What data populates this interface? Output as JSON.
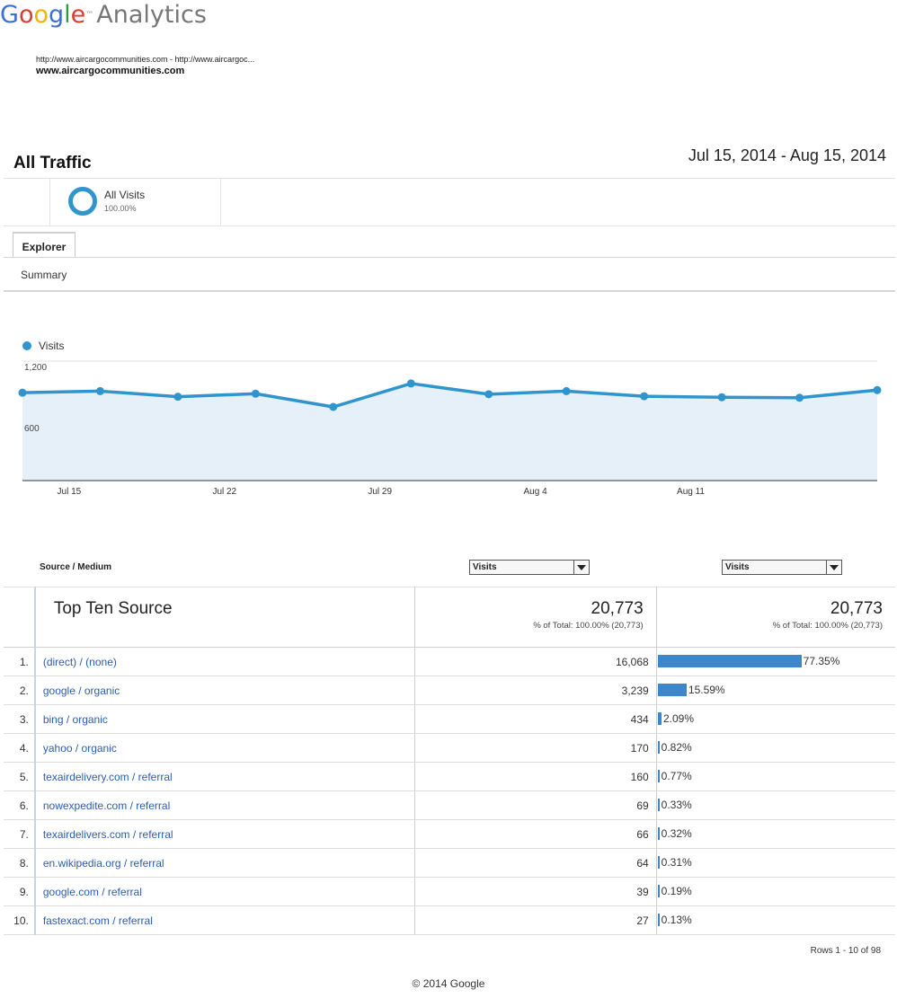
{
  "app": {
    "logo_google": "Google",
    "logo_tm": "™",
    "logo_analytics": "Analytics"
  },
  "profile": {
    "urls": "http://www.aircargocommunities.com - http://www.aircargoc...",
    "name": "www.aircargocommunities.com"
  },
  "report": {
    "title": "All Traffic",
    "date_range": "Jul 15, 2014 - Aug 15, 2014"
  },
  "segment": {
    "label": "All Visits",
    "pct": "100.00%",
    "color": "#3094cd"
  },
  "tabs": {
    "explorer": "Explorer",
    "summary": "Summary"
  },
  "chart_data": {
    "type": "area",
    "legend": "Visits",
    "legend_position": "top-left",
    "color": "#3094cd",
    "y_ticks": [
      "1,200",
      "600"
    ],
    "y_tick_values": [
      1200,
      600
    ],
    "ylim": [
      0,
      1200
    ],
    "x_ticks": [
      "Jul 15",
      "Jul 22",
      "Jul 29",
      "Aug 4",
      "Aug 11"
    ],
    "x_tick_index": [
      0.6,
      2.6,
      4.6,
      6.6,
      8.6
    ],
    "points": [
      890,
      905,
      850,
      880,
      750,
      980,
      875,
      905,
      855,
      845,
      840,
      915
    ],
    "grid": true
  },
  "table": {
    "dimension_header": "Source / Medium",
    "metric_select_1": "Visits",
    "metric_select_2": "Visits",
    "top_title": "Top Ten Source",
    "total_1": "20,773",
    "total_1_sub": "% of Total: 100.00% (20,773)",
    "total_2": "20,773",
    "total_2_sub": "% of Total: 100.00% (20,773)",
    "bar_color": "#3d86c9",
    "rows": [
      {
        "idx": "1.",
        "source": "(direct) / (none)",
        "visits": "16,068",
        "pct": "77.35%",
        "pct_value": 77.35
      },
      {
        "idx": "2.",
        "source": "google / organic",
        "visits": "3,239",
        "pct": "15.59%",
        "pct_value": 15.59
      },
      {
        "idx": "3.",
        "source": "bing / organic",
        "visits": "434",
        "pct": "2.09%",
        "pct_value": 2.09
      },
      {
        "idx": "4.",
        "source": "yahoo / organic",
        "visits": "170",
        "pct": "0.82%",
        "pct_value": 0.82
      },
      {
        "idx": "5.",
        "source": "texairdelivery.com / referral",
        "visits": "160",
        "pct": "0.77%",
        "pct_value": 0.77
      },
      {
        "idx": "6.",
        "source": "nowexpedite.com / referral",
        "visits": "69",
        "pct": "0.33%",
        "pct_value": 0.33
      },
      {
        "idx": "7.",
        "source": "texairdelivers.com / referral",
        "visits": "66",
        "pct": "0.32%",
        "pct_value": 0.32
      },
      {
        "idx": "8.",
        "source": "en.wikipedia.org / referral",
        "visits": "64",
        "pct": "0.31%",
        "pct_value": 0.31
      },
      {
        "idx": "9.",
        "source": "google.com / referral",
        "visits": "39",
        "pct": "0.19%",
        "pct_value": 0.19
      },
      {
        "idx": "10.",
        "source": "fastexact.com / referral",
        "visits": "27",
        "pct": "0.13%",
        "pct_value": 0.13
      }
    ],
    "rows_info": "Rows 1 - 10 of 98"
  },
  "footer": {
    "copyright": "© 2014 Google"
  }
}
